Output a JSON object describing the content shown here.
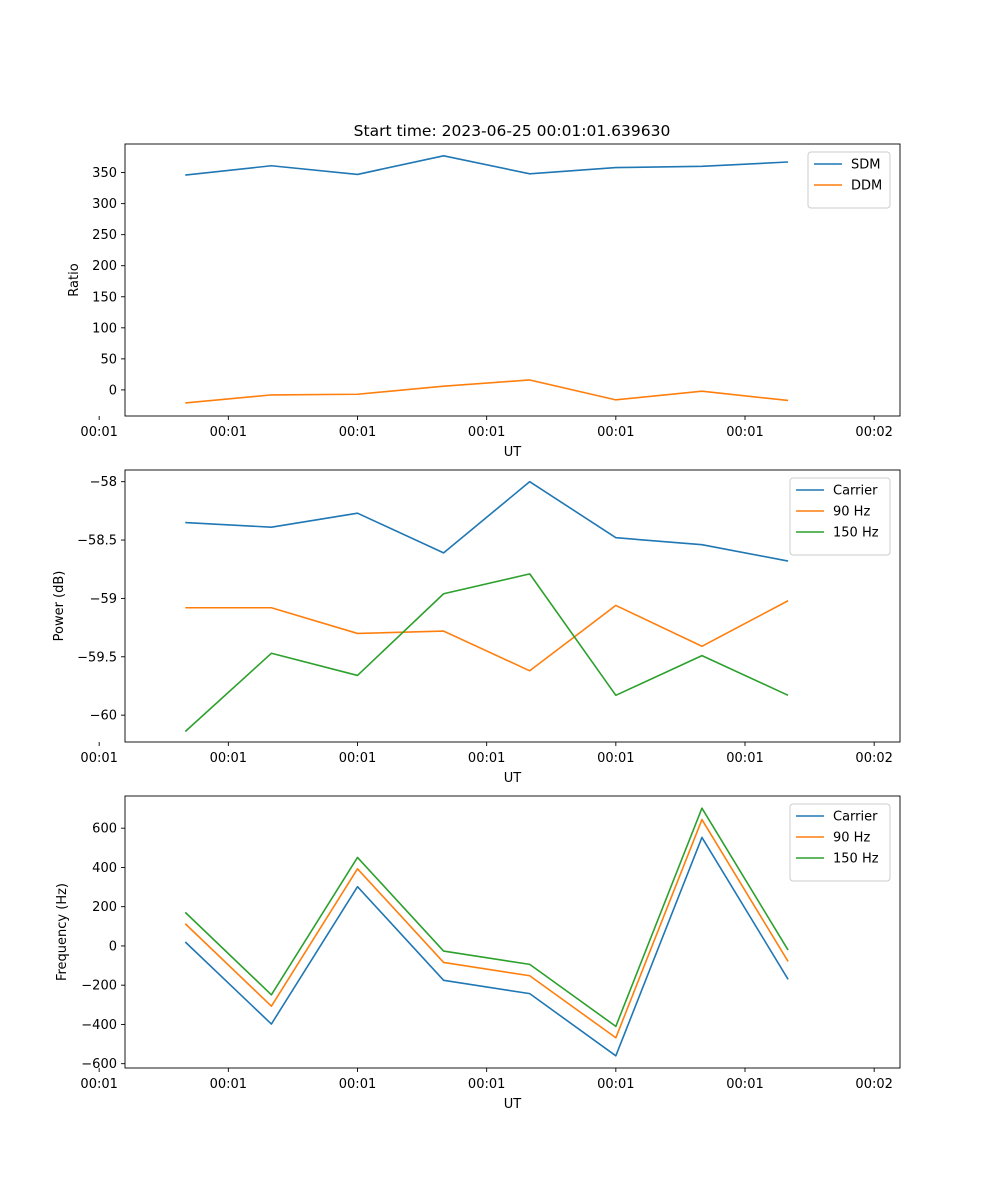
{
  "figure": {
    "title": "Start time: 2023-06-25 00:01:01.639630"
  },
  "chart_data": [
    {
      "type": "line",
      "xlabel": "UT",
      "ylabel": "Ratio",
      "x_tick_labels": [
        "00:01",
        "00:01",
        "00:01",
        "00:01",
        "00:01",
        "00:01",
        "00:02"
      ],
      "x": [
        1,
        2,
        3,
        4,
        5,
        6,
        7,
        8
      ],
      "xlim": [
        0.3,
        9.3
      ],
      "ylim": [
        -42,
        396
      ],
      "yticks": [
        0,
        50,
        100,
        150,
        200,
        250,
        300,
        350
      ],
      "legend_position": "upper right",
      "series": [
        {
          "name": "SDM",
          "color": "#1f77b4",
          "values": [
            346,
            361,
            347,
            377,
            348,
            358,
            360,
            367
          ]
        },
        {
          "name": "DDM",
          "color": "#ff7f0e",
          "values": [
            -21,
            -8,
            -7,
            6,
            16,
            -16,
            -2,
            -17
          ]
        }
      ]
    },
    {
      "type": "line",
      "xlabel": "UT",
      "ylabel": "Power (dB)",
      "x_tick_labels": [
        "00:01",
        "00:01",
        "00:01",
        "00:01",
        "00:01",
        "00:01",
        "00:02"
      ],
      "x": [
        1,
        2,
        3,
        4,
        5,
        6,
        7,
        8
      ],
      "xlim": [
        0.3,
        9.3
      ],
      "ylim": [
        -60.23,
        -57.9
      ],
      "yticks": [
        -60.0,
        -59.5,
        -59.0,
        -58.5,
        -58.0
      ],
      "legend_position": "upper right",
      "series": [
        {
          "name": "Carrier",
          "color": "#1f77b4",
          "values": [
            -58.35,
            -58.39,
            -58.27,
            -58.61,
            -58.0,
            -58.48,
            -58.54,
            -58.68
          ]
        },
        {
          "name": "90 Hz",
          "color": "#ff7f0e",
          "values": [
            -59.08,
            -59.08,
            -59.3,
            -59.28,
            -59.62,
            -59.06,
            -59.41,
            -59.02
          ]
        },
        {
          "name": "150 Hz",
          "color": "#2ca02c",
          "values": [
            -60.14,
            -59.47,
            -59.66,
            -58.96,
            -58.79,
            -59.83,
            -59.49,
            -59.83
          ]
        }
      ]
    },
    {
      "type": "line",
      "xlabel": "UT",
      "ylabel": "Frequency (Hz)",
      "x_tick_labels": [
        "00:01",
        "00:01",
        "00:01",
        "00:01",
        "00:01",
        "00:01",
        "00:02"
      ],
      "x": [
        1,
        2,
        3,
        4,
        5,
        6,
        7,
        8
      ],
      "xlim": [
        0.3,
        9.3
      ],
      "ylim": [
        -622,
        764
      ],
      "yticks": [
        -600,
        -400,
        -200,
        0,
        200,
        400,
        600
      ],
      "legend_position": "upper right",
      "series": [
        {
          "name": "Carrier",
          "color": "#1f77b4",
          "values": [
            20,
            -398,
            302,
            -175,
            -243,
            -560,
            553,
            -170
          ]
        },
        {
          "name": "90 Hz",
          "color": "#ff7f0e",
          "values": [
            113,
            -307,
            393,
            -84,
            -152,
            -468,
            644,
            -79
          ]
        },
        {
          "name": "150 Hz",
          "color": "#2ca02c",
          "values": [
            171,
            -249,
            451,
            -26,
            -94,
            -410,
            702,
            -21
          ]
        }
      ]
    }
  ]
}
